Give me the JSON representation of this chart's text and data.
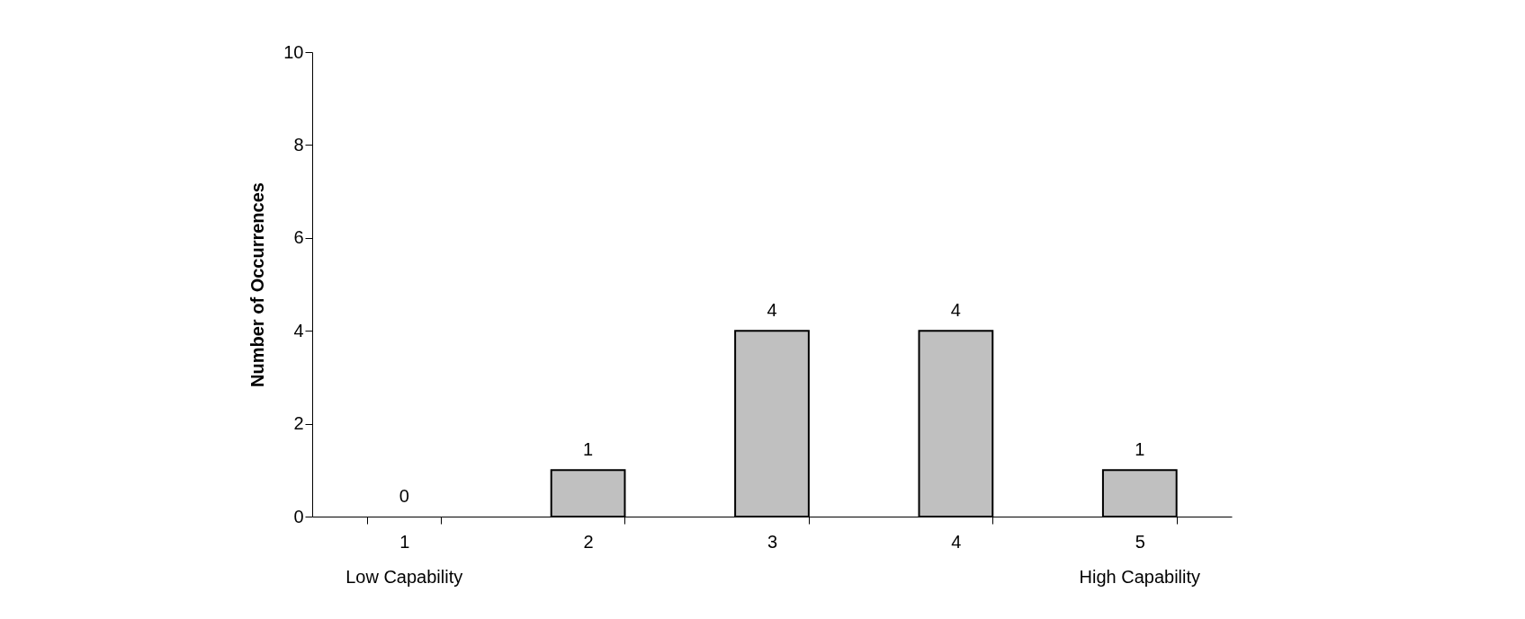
{
  "chart_data": {
    "type": "bar",
    "ylabel": "Number of Occurrences",
    "categories": [
      "1",
      "2",
      "3",
      "4",
      "5"
    ],
    "values": [
      0,
      1,
      4,
      4,
      1
    ],
    "color": "#c0c0c0",
    "ylim": [
      0,
      10
    ],
    "yticks": [
      0,
      2,
      4,
      6,
      8,
      10
    ],
    "grid": false,
    "data_labels": true,
    "annotations": [
      "Low Capability",
      "High Capability"
    ]
  }
}
